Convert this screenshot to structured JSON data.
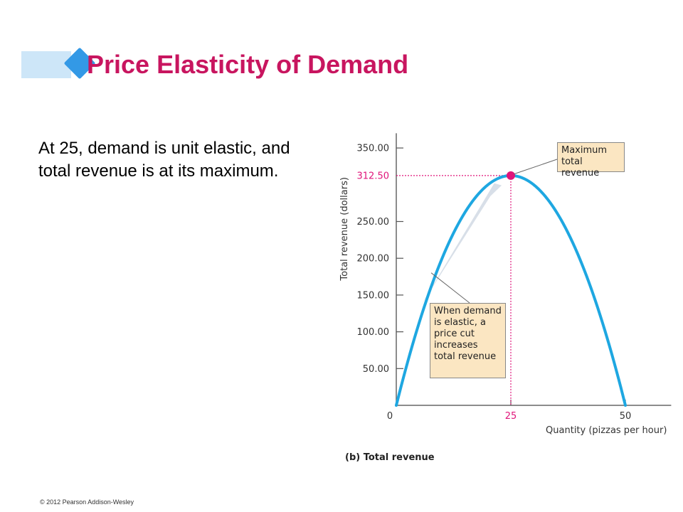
{
  "header": {
    "title": "Price Elasticity of Demand"
  },
  "body": {
    "text": "At 25, demand is unit elastic, and total revenue is at its maximum."
  },
  "footer": {
    "copyright": "© 2012 Pearson Addison-Wesley"
  },
  "colors": {
    "title": "#c8155f",
    "curve": "#1ea7e1",
    "highlight": "#e0157a",
    "note_fill": "#fbe6c2"
  },
  "chart_data": {
    "type": "line",
    "caption": "(b) Total revenue",
    "xlabel": "Quantity (pizzas per hour)",
    "ylabel": "Total revenue (dollars)",
    "xlim": [
      0,
      60
    ],
    "ylim": [
      0,
      370
    ],
    "x_ticks": [
      {
        "value": 0,
        "label": "0",
        "highlight": false
      },
      {
        "value": 25,
        "label": "25",
        "highlight": true
      },
      {
        "value": 50,
        "label": "50",
        "highlight": false
      }
    ],
    "y_ticks": [
      {
        "value": 50,
        "label": "50.00",
        "highlight": false
      },
      {
        "value": 100,
        "label": "100.00",
        "highlight": false
      },
      {
        "value": 150,
        "label": "150.00",
        "highlight": false
      },
      {
        "value": 200,
        "label": "200.00",
        "highlight": false
      },
      {
        "value": 250,
        "label": "250.00",
        "highlight": false
      },
      {
        "value": 312.5,
        "label": "312.50",
        "highlight": true
      },
      {
        "value": 350,
        "label": "350.00",
        "highlight": false
      }
    ],
    "series": [
      {
        "x": [
          0,
          2.5,
          5,
          7.5,
          10,
          12.5,
          15,
          17.5,
          20,
          22.5,
          25,
          27.5,
          30,
          32.5,
          35,
          37.5,
          40,
          42.5,
          45,
          47.5,
          50
        ],
        "y": [
          0,
          59.4,
          112.5,
          159.4,
          200,
          234.4,
          262.5,
          284.4,
          300,
          309.4,
          312.5,
          309.4,
          300,
          284.4,
          262.5,
          234.4,
          200,
          159.4,
          112.5,
          59.4,
          0
        ]
      }
    ],
    "max_point": {
      "x": 25,
      "y": 312.5
    },
    "annotations": [
      {
        "id": "max",
        "text": "Maximum\ntotal revenue",
        "target": {
          "x": 25,
          "y": 312.5
        }
      },
      {
        "id": "elastic",
        "text": "When demand\nis elastic, a\nprice cut\nincreases\ntotal revenue",
        "target": {
          "x": 7,
          "y": 186
        }
      }
    ],
    "legend": "none",
    "grid": false
  }
}
